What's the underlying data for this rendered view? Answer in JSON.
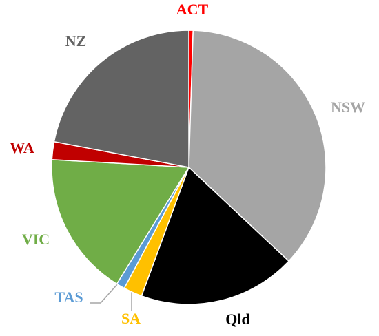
{
  "chart_data": {
    "type": "pie",
    "categories": [
      "ACT",
      "NSW",
      "Qld",
      "SA",
      "TAS",
      "VIC",
      "WA",
      "NZ"
    ],
    "values": [
      0.5,
      36.5,
      18.6,
      2.2,
      1.0,
      17.1,
      2.1,
      22.0
    ],
    "colors": [
      "#ff0000",
      "#a5a5a5",
      "#000000",
      "#ffc000",
      "#5b9bd5",
      "#70ad47",
      "#c00000",
      "#636363"
    ]
  }
}
